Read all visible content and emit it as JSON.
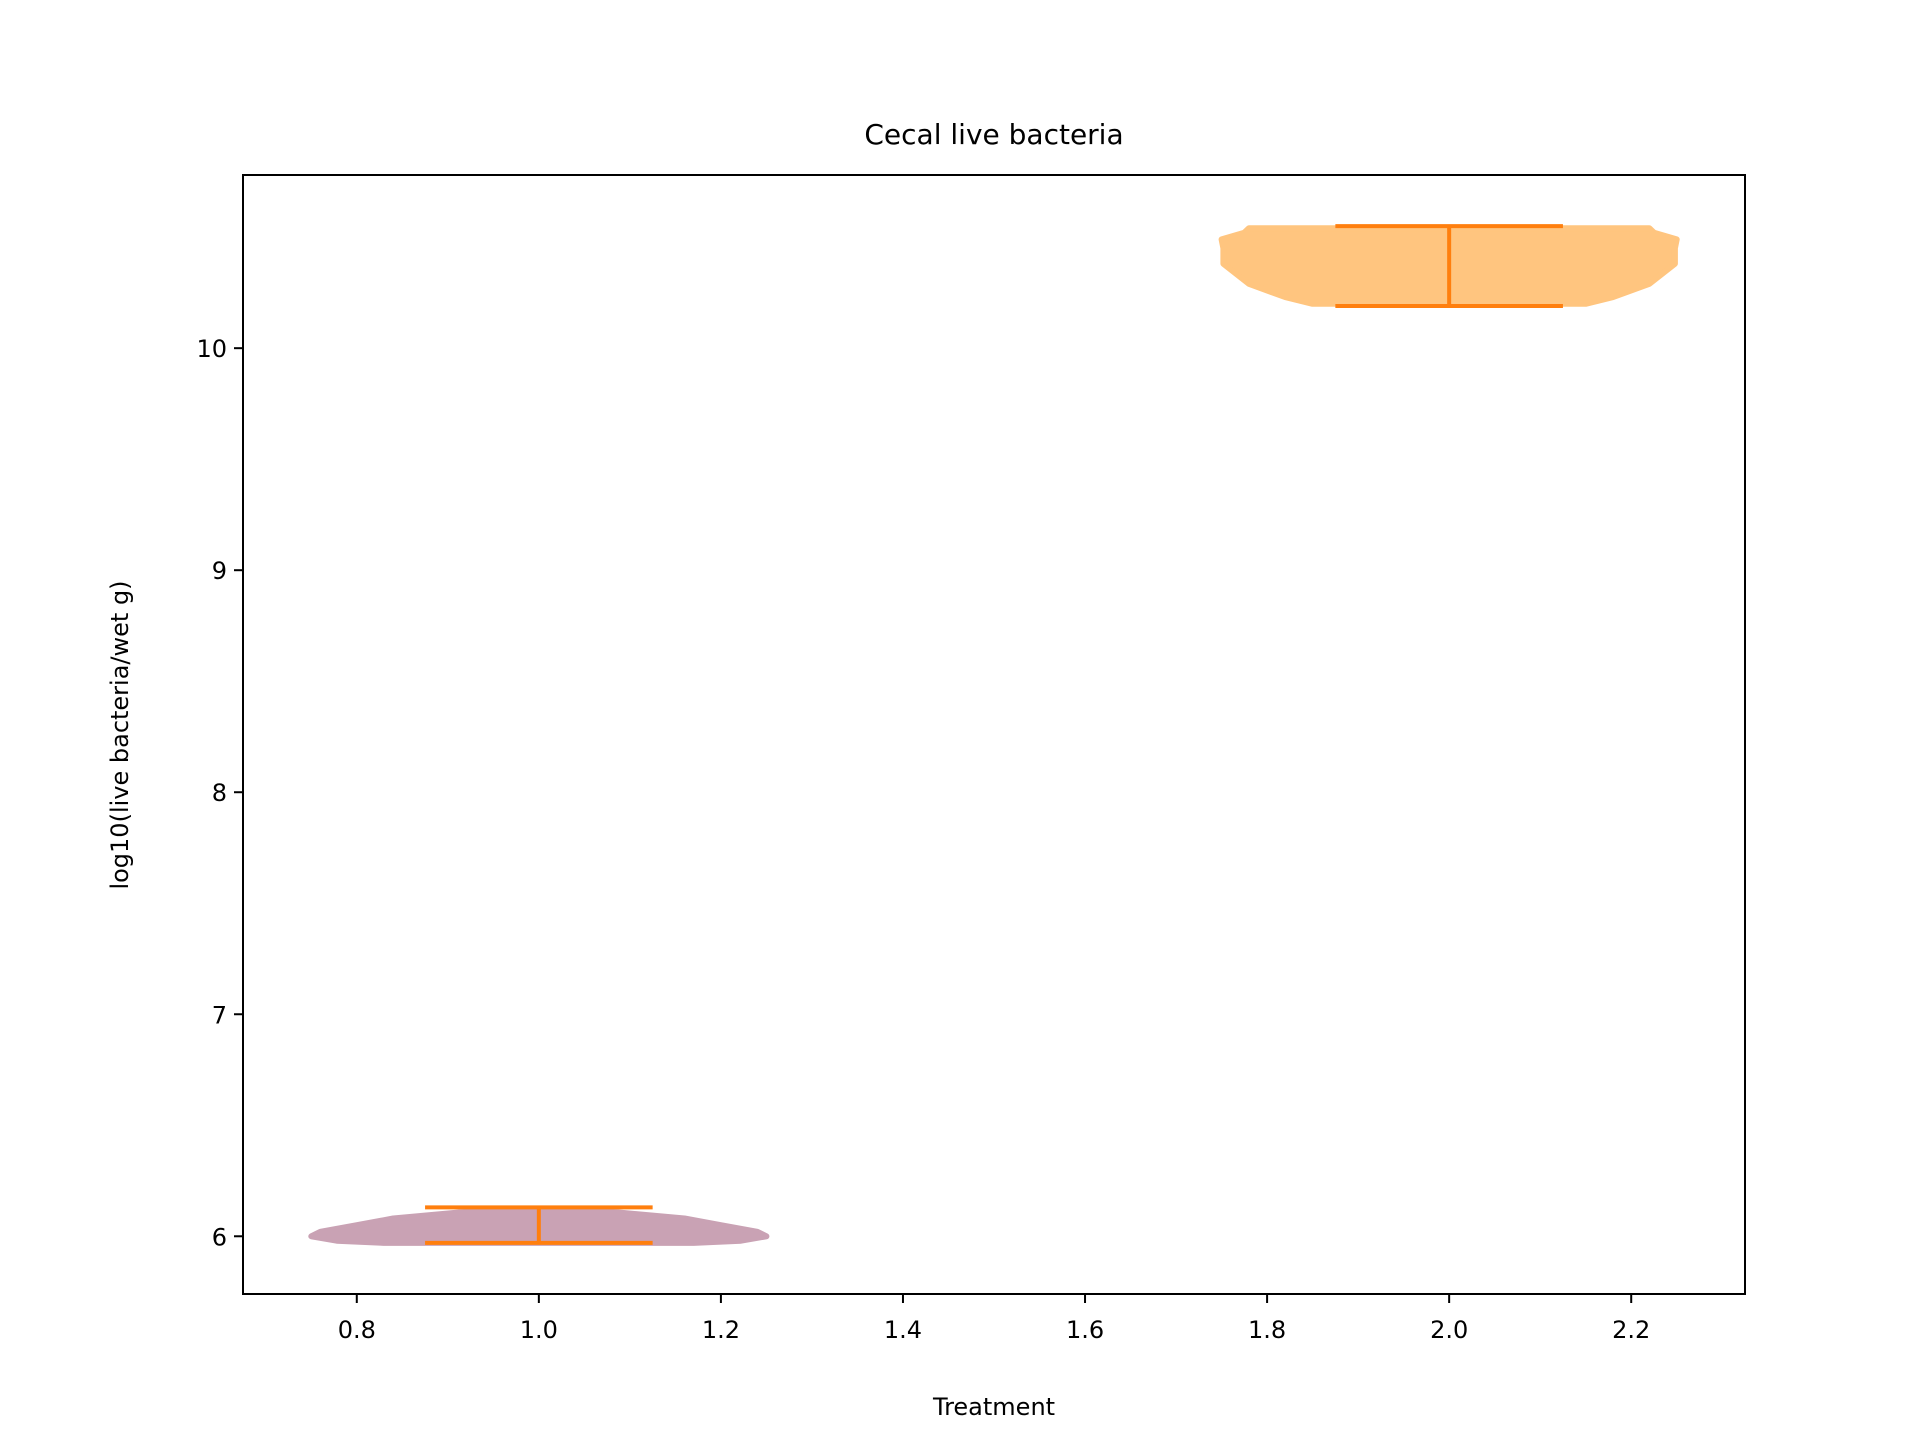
{
  "chart_data": {
    "type": "violin",
    "title": "Cecal live bacteria",
    "xlabel": "Treatment",
    "ylabel": "log10(live bacteria/wet g)",
    "xlim": [
      0.675,
      2.325
    ],
    "ylim": [
      5.74,
      10.78
    ],
    "x_ticks": [
      0.8,
      1.0,
      1.2,
      1.4,
      1.6,
      1.8,
      2.0,
      2.2
    ],
    "x_tick_labels": [
      "0.8",
      "1.0",
      "1.2",
      "1.4",
      "1.6",
      "1.8",
      "2.0",
      "2.2"
    ],
    "y_ticks": [
      6,
      7,
      8,
      9,
      10
    ],
    "y_tick_labels": [
      "6",
      "7",
      "8",
      "9",
      "10"
    ],
    "grid": false,
    "whisker_color": "#ff7f0e",
    "series": [
      {
        "position": 1.0,
        "min": 5.97,
        "max": 6.13,
        "fill": "#c9a2b4",
        "profile": [
          [
            5.97,
            0.17
          ],
          [
            5.98,
            0.222
          ],
          [
            6.0,
            0.25
          ],
          [
            6.02,
            0.24
          ],
          [
            6.05,
            0.2
          ],
          [
            6.08,
            0.16
          ],
          [
            6.11,
            0.08
          ],
          [
            6.12,
            0.065
          ]
        ]
      },
      {
        "position": 2.0,
        "min": 10.19,
        "max": 10.55,
        "fill": "#ffc57f",
        "profile": [
          [
            10.2,
            0.15
          ],
          [
            10.23,
            0.18
          ],
          [
            10.29,
            0.22
          ],
          [
            10.38,
            0.248
          ],
          [
            10.45,
            0.248
          ],
          [
            10.49,
            0.25
          ],
          [
            10.52,
            0.225
          ],
          [
            10.54,
            0.22
          ]
        ]
      }
    ]
  }
}
